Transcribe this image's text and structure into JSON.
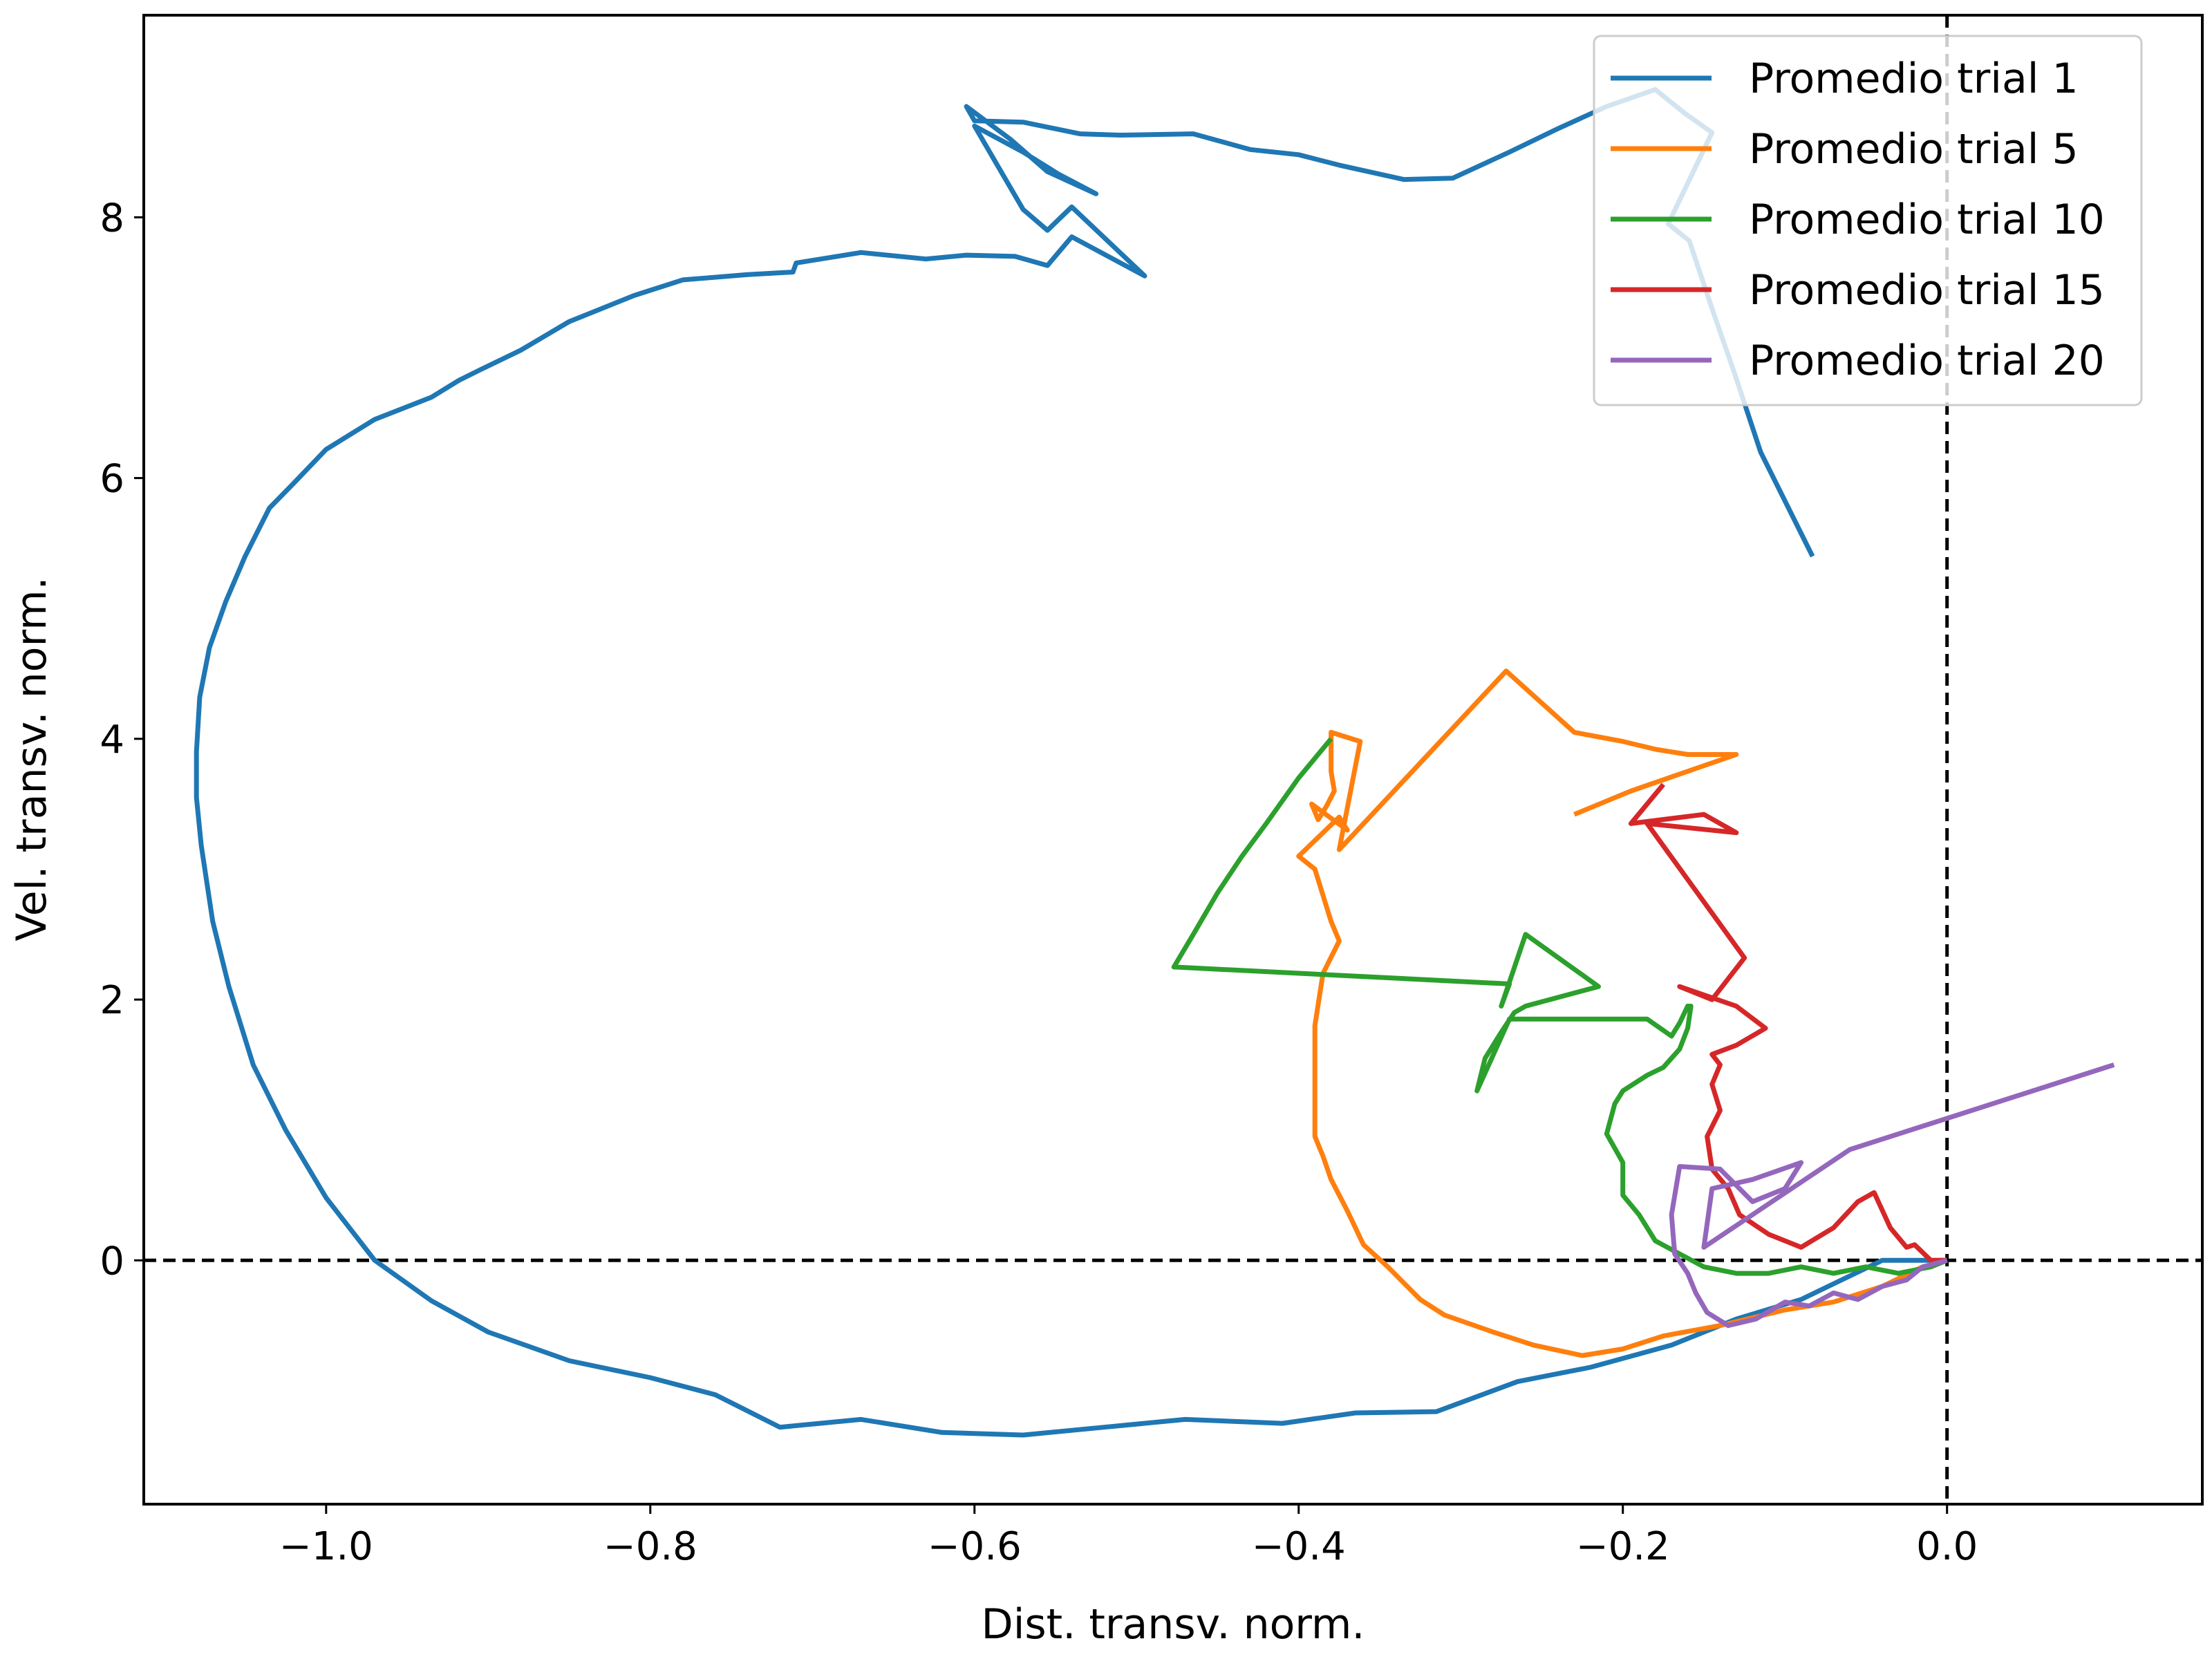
{
  "chart_data": {
    "type": "line",
    "title": "",
    "xlabel": "Dist. transv. norm.",
    "ylabel": "Vel. transv. norm.",
    "xlim": [
      -1.1125,
      0.1575
    ],
    "ylim": [
      -1.87,
      9.55
    ],
    "xticks": [
      -1.0,
      -0.8,
      -0.6,
      -0.4,
      -0.2,
      0.0
    ],
    "xtick_labels": [
      "−1.0",
      "−0.8",
      "−0.6",
      "−0.4",
      "−0.2",
      "0.0"
    ],
    "yticks": [
      0,
      2,
      4,
      6,
      8
    ],
    "ytick_labels": [
      "0",
      "2",
      "4",
      "6",
      "8"
    ],
    "grid": false,
    "reference_lines": {
      "x": 0,
      "y": 0,
      "style": "dashed",
      "color": "#000000"
    },
    "legend_position": "top-right",
    "series": [
      {
        "name": "Promedio trial 1",
        "color": "#1f77b4",
        "x": [
          -0.083,
          -0.115,
          -0.131,
          -0.145,
          -0.159,
          -0.172,
          -0.145,
          -0.162,
          -0.18,
          -0.21,
          -0.24,
          -0.27,
          -0.305,
          -0.335,
          -0.375,
          -0.4,
          -0.43,
          -0.465,
          -0.51,
          -0.535,
          -0.57,
          -0.6,
          -0.605,
          -0.578,
          -0.555,
          -0.525,
          -0.548,
          -0.57,
          -0.6,
          -0.6,
          -0.57,
          -0.555,
          -0.54,
          -0.495,
          -0.54,
          -0.555,
          -0.575,
          -0.605,
          -0.63,
          -0.67,
          -0.71,
          -0.712,
          -0.74,
          -0.78,
          -0.81,
          -0.85,
          -0.88,
          -0.905,
          -0.918,
          -0.935,
          -0.97,
          -1.0,
          -1.02,
          -1.035,
          -1.05,
          -1.062,
          -1.072,
          -1.078,
          -1.08,
          -1.08,
          -1.077,
          -1.07,
          -1.06,
          -1.045,
          -1.025,
          -1.0,
          -0.97,
          -0.935,
          -0.9,
          -0.85,
          -0.8,
          -0.76,
          -0.72,
          -0.67,
          -0.62,
          -0.57,
          -0.52,
          -0.47,
          -0.41,
          -0.365,
          -0.315,
          -0.265,
          -0.22,
          -0.17,
          -0.13,
          -0.09,
          -0.04,
          -0.015,
          0.0
        ],
        "y": [
          5.4,
          6.2,
          6.8,
          7.3,
          7.82,
          7.95,
          8.65,
          8.8,
          8.98,
          8.85,
          8.68,
          8.5,
          8.3,
          8.29,
          8.4,
          8.48,
          8.52,
          8.64,
          8.63,
          8.64,
          8.73,
          8.74,
          8.85,
          8.6,
          8.35,
          8.18,
          8.33,
          8.5,
          8.7,
          8.7,
          8.06,
          7.9,
          8.08,
          7.55,
          7.85,
          7.63,
          7.7,
          7.71,
          7.68,
          7.73,
          7.65,
          7.58,
          7.56,
          7.52,
          7.4,
          7.2,
          6.98,
          6.83,
          6.75,
          6.62,
          6.45,
          6.22,
          5.96,
          5.77,
          5.4,
          5.05,
          4.7,
          4.32,
          3.9,
          3.55,
          3.18,
          2.6,
          2.1,
          1.5,
          1.0,
          0.48,
          0.0,
          -0.31,
          -0.55,
          -0.77,
          -0.9,
          -1.03,
          -1.28,
          -1.22,
          -1.32,
          -1.34,
          -1.28,
          -1.22,
          -1.25,
          -1.17,
          -1.16,
          -0.93,
          -0.82,
          -0.65,
          -0.45,
          -0.3,
          0.0,
          0.0,
          0.0
        ]
      },
      {
        "name": "Promedio trial 5",
        "color": "#ff7f0e",
        "x": [
          -0.23,
          -0.195,
          -0.13,
          -0.16,
          -0.18,
          -0.2,
          -0.23,
          -0.272,
          -0.375,
          -0.362,
          -0.38,
          -0.38,
          -0.378,
          -0.383,
          -0.388,
          -0.392,
          -0.37,
          -0.375,
          -0.4,
          -0.39,
          -0.38,
          -0.375,
          -0.385,
          -0.39,
          -0.39,
          -0.39,
          -0.385,
          -0.38,
          -0.375,
          -0.37,
          -0.36,
          -0.345,
          -0.325,
          -0.31,
          -0.28,
          -0.255,
          -0.225,
          -0.2,
          -0.175,
          -0.14,
          -0.1,
          -0.07,
          -0.04,
          -0.015,
          0.0
        ],
        "y": [
          3.42,
          3.6,
          3.88,
          3.88,
          3.92,
          3.98,
          4.05,
          4.52,
          3.15,
          3.98,
          4.05,
          3.75,
          3.6,
          3.48,
          3.38,
          3.5,
          3.3,
          3.4,
          3.1,
          3.0,
          2.6,
          2.45,
          2.2,
          1.8,
          1.3,
          0.95,
          0.8,
          0.62,
          0.5,
          0.38,
          0.12,
          -0.05,
          -0.3,
          -0.42,
          -0.55,
          -0.65,
          -0.73,
          -0.68,
          -0.58,
          -0.5,
          -0.38,
          -0.32,
          -0.2,
          -0.05,
          0.0
        ]
      },
      {
        "name": "Promedio trial 10",
        "color": "#2ca02c",
        "x": [
          -0.38,
          -0.4,
          -0.42,
          -0.435,
          -0.45,
          -0.465,
          -0.477,
          -0.27,
          -0.275,
          -0.26,
          -0.215,
          -0.26,
          -0.267,
          -0.275,
          -0.285,
          -0.29,
          -0.27,
          -0.26,
          -0.255,
          -0.185,
          -0.17,
          -0.165,
          -0.16,
          -0.158,
          -0.16,
          -0.165,
          -0.175,
          -0.185,
          -0.2,
          -0.205,
          -0.21,
          -0.2,
          -0.2,
          -0.19,
          -0.18,
          -0.165,
          -0.15,
          -0.13,
          -0.11,
          -0.09,
          -0.07,
          -0.05,
          -0.03,
          -0.01,
          0.0
        ],
        "y": [
          4.0,
          3.7,
          3.35,
          3.1,
          2.82,
          2.5,
          2.25,
          2.12,
          1.95,
          2.5,
          2.1,
          1.95,
          1.9,
          1.75,
          1.55,
          1.3,
          1.85,
          1.85,
          1.85,
          1.85,
          1.72,
          1.82,
          1.95,
          1.95,
          1.78,
          1.62,
          1.48,
          1.42,
          1.3,
          1.2,
          0.97,
          0.75,
          0.5,
          0.35,
          0.15,
          0.05,
          -0.05,
          -0.1,
          -0.1,
          -0.05,
          -0.1,
          -0.05,
          -0.1,
          -0.05,
          0.0
        ]
      },
      {
        "name": "Promedio trial 15",
        "color": "#d62728",
        "x": [
          -0.175,
          -0.195,
          -0.15,
          -0.13,
          -0.185,
          -0.125,
          -0.145,
          -0.165,
          -0.13,
          -0.112,
          -0.13,
          -0.145,
          -0.14,
          -0.145,
          -0.14,
          -0.148,
          -0.145,
          -0.135,
          -0.128,
          -0.11,
          -0.09,
          -0.07,
          -0.055,
          -0.045,
          -0.035,
          -0.025,
          -0.02,
          -0.01,
          0.0
        ],
        "y": [
          3.65,
          3.35,
          3.42,
          3.28,
          3.35,
          2.32,
          2.0,
          2.1,
          1.95,
          1.78,
          1.65,
          1.58,
          1.5,
          1.35,
          1.15,
          0.95,
          0.7,
          0.55,
          0.35,
          0.2,
          0.1,
          0.25,
          0.45,
          0.52,
          0.25,
          0.1,
          0.12,
          0.0,
          0.0
        ]
      },
      {
        "name": "Promedio trial 20",
        "color": "#9467bd",
        "x": [
          0.103,
          -0.06,
          -0.15,
          -0.145,
          -0.12,
          -0.09,
          -0.1,
          -0.12,
          -0.14,
          -0.165,
          -0.17,
          -0.168,
          -0.16,
          -0.155,
          -0.148,
          -0.135,
          -0.118,
          -0.1,
          -0.085,
          -0.07,
          -0.055,
          -0.04,
          -0.025,
          -0.015,
          0.0
        ],
        "y": [
          1.5,
          0.85,
          0.1,
          0.55,
          0.62,
          0.75,
          0.55,
          0.45,
          0.7,
          0.72,
          0.35,
          0.05,
          -0.1,
          -0.25,
          -0.4,
          -0.5,
          -0.45,
          -0.32,
          -0.35,
          -0.25,
          -0.3,
          -0.2,
          -0.15,
          -0.05,
          0.0
        ]
      }
    ]
  }
}
